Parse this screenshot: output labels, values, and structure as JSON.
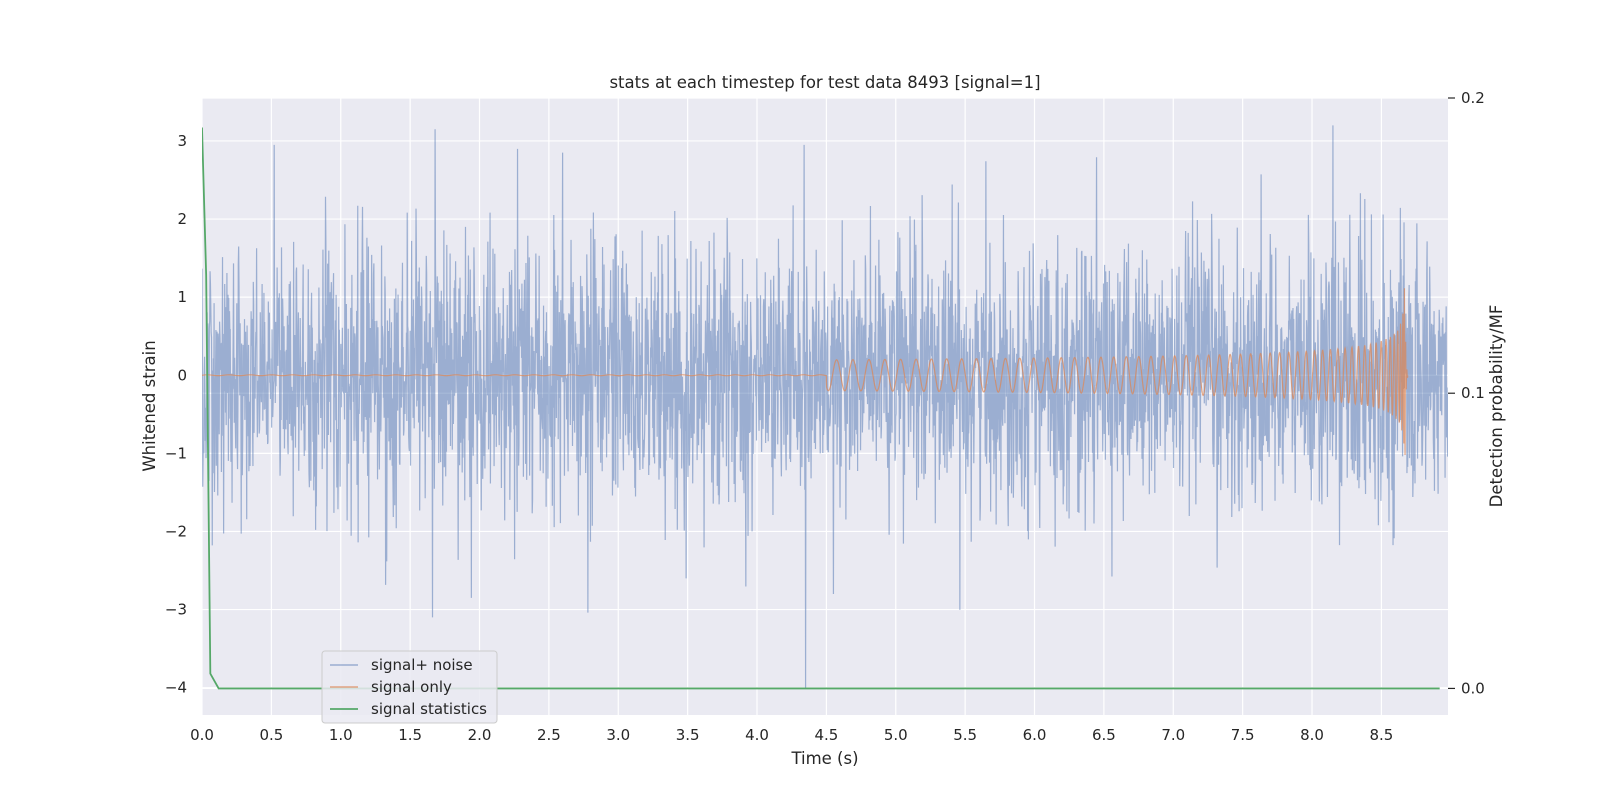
{
  "chart_data": {
    "type": "line",
    "title": "stats at each timestep for test data 8493 [signal=1]",
    "xlabel": "Time (s)",
    "ylabel": "Whitened strain",
    "y2label": "Detection probability/MF",
    "xlim": [
      0.0,
      8.98
    ],
    "ylim": [
      -4.35,
      3.55
    ],
    "y2lim": [
      -0.009,
      0.2
    ],
    "xticks": [
      0.0,
      0.5,
      1.0,
      1.5,
      2.0,
      2.5,
      3.0,
      3.5,
      4.0,
      4.5,
      5.0,
      5.5,
      6.0,
      6.5,
      7.0,
      7.5,
      8.0,
      8.5
    ],
    "xtick_labels": [
      "0.0",
      "0.5",
      "1.0",
      "1.5",
      "2.0",
      "2.5",
      "3.0",
      "3.5",
      "4.0",
      "4.5",
      "5.0",
      "5.5",
      "6.0",
      "6.5",
      "7.0",
      "7.5",
      "8.0",
      "8.5"
    ],
    "yticks": [
      -4,
      -3,
      -2,
      -1,
      0,
      1,
      2,
      3
    ],
    "ytick_labels": [
      "−4",
      "−3",
      "−2",
      "−1",
      "0",
      "1",
      "2",
      "3"
    ],
    "y2ticks": [
      0.0,
      0.1,
      0.2
    ],
    "y2tick_labels": [
      "0.0",
      "0.1",
      "0.2"
    ],
    "grid": true,
    "legend_position": "lower-left",
    "series": [
      {
        "name": "signal+ noise",
        "color": "#4c72b0",
        "axis": "left",
        "description": "whitened noisy strain, approx. Gaussian, sigma ~0.8, range about -4 to 3.2",
        "spikes": [
          {
            "x": 0.52,
            "y": 2.95
          },
          {
            "x": 1.68,
            "y": 3.15
          },
          {
            "x": 1.94,
            "y": -2.85
          },
          {
            "x": 2.6,
            "y": 2.85
          },
          {
            "x": 4.35,
            "y": -4.0
          },
          {
            "x": 4.34,
            "y": 2.95
          },
          {
            "x": 4.55,
            "y": -2.8
          },
          {
            "x": 8.15,
            "y": 3.2
          },
          {
            "x": 3.49,
            "y": -2.6
          }
        ]
      },
      {
        "name": "signal only",
        "color": "#dd8452",
        "axis": "left",
        "chirp": {
          "start": 4.5,
          "merger": 8.67,
          "peak_amplitude": 1.25
        }
      },
      {
        "name": "signal statistics",
        "color": "#55a868",
        "axis": "right",
        "x": [
          0.0,
          0.03,
          0.06,
          0.12,
          8.92
        ],
        "y": [
          0.19,
          0.14,
          0.005,
          0.0,
          0.0
        ]
      }
    ]
  }
}
